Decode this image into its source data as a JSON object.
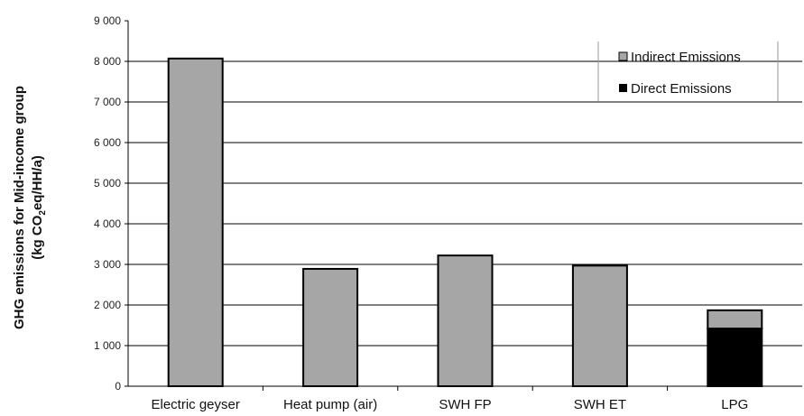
{
  "chart_data": {
    "type": "bar",
    "stacked": true,
    "categories": [
      "Electric geyser",
      "Heat pump (air)",
      "SWH FP",
      "SWH ET",
      "LPG"
    ],
    "series": [
      {
        "name": "Direct Emissions",
        "values": [
          0,
          0,
          0,
          0,
          1420
        ],
        "color": "#000000"
      },
      {
        "name": "Indirect Emissions",
        "values": [
          8070,
          2890,
          3220,
          2970,
          450
        ],
        "color": "#a6a6a6"
      }
    ],
    "ylabel_line1": "GHG emissions for Mid-income group",
    "ylabel_line2_pre": "(kg CO",
    "ylabel_line2_sub": "2",
    "ylabel_line2_post": "eq/HH/a)",
    "ylim": [
      0,
      9000
    ],
    "yticks": [
      0,
      1000,
      2000,
      3000,
      4000,
      5000,
      6000,
      7000,
      8000,
      9000
    ],
    "ytick_labels": [
      "0",
      "1 000",
      "2 000",
      "3 000",
      "4 000",
      "5 000",
      "6 000",
      "7 000",
      "8 000",
      "9 000"
    ],
    "legend_position": "top-right",
    "grid": "horizontal major gridlines",
    "legend": [
      {
        "label": "Indirect Emissions",
        "color": "#a6a6a6"
      },
      {
        "label": "Direct Emissions",
        "color": "#000000"
      }
    ]
  }
}
